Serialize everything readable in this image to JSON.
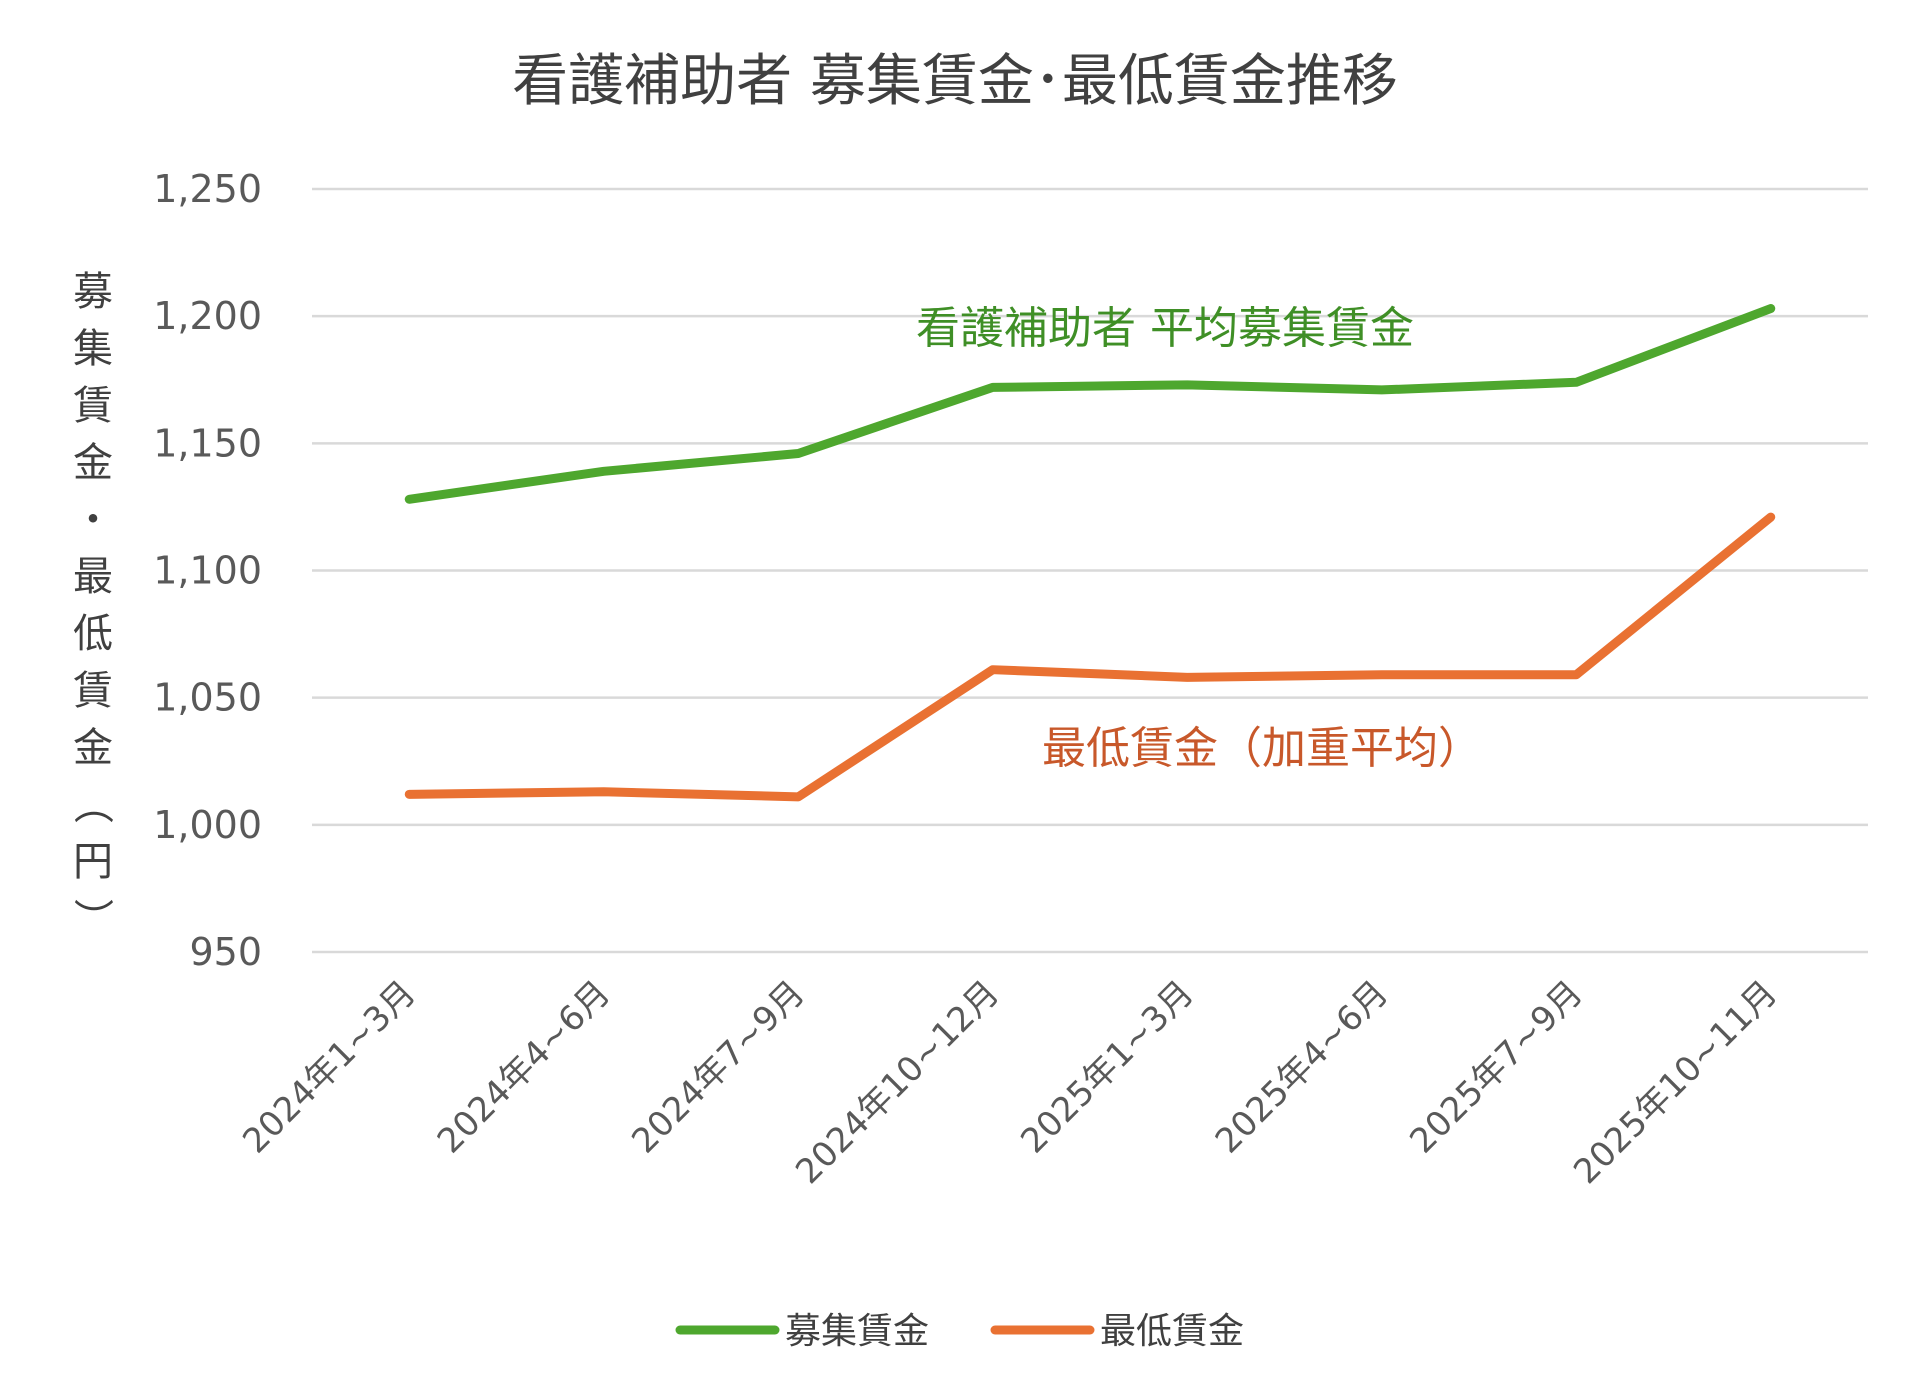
{
  "chart_data": {
    "type": "line",
    "title": "看護補助者 募集賃金･最低賃金推移",
    "ylabel": "募集賃金・最低賃金（円）",
    "xlabel": "",
    "ylim": [
      950,
      1250
    ],
    "yticks": [
      "950",
      "1,000",
      "1,050",
      "1,100",
      "1,150",
      "1,200",
      "1,250"
    ],
    "categories": [
      "2024年1~3月",
      "2024年4~6月",
      "2024年7~9月",
      "2024年10~12月",
      "2025年1~3月",
      "2025年4~6月",
      "2025年7~9月",
      "2025年10~11月"
    ],
    "series": [
      {
        "name": "募集賃金",
        "color": "#4ea72e",
        "values": [
          1128,
          1139,
          1146,
          1172,
          1173,
          1171,
          1174,
          1203
        ],
        "annotation": "看護補助者 平均募集賃金"
      },
      {
        "name": "最低賃金",
        "color": "#e97132",
        "values": [
          1012,
          1013,
          1011,
          1061,
          1058,
          1059,
          1059,
          1121
        ],
        "annotation": "最低賃金（加重平均）"
      }
    ],
    "grid": true,
    "legend": "bottom"
  }
}
